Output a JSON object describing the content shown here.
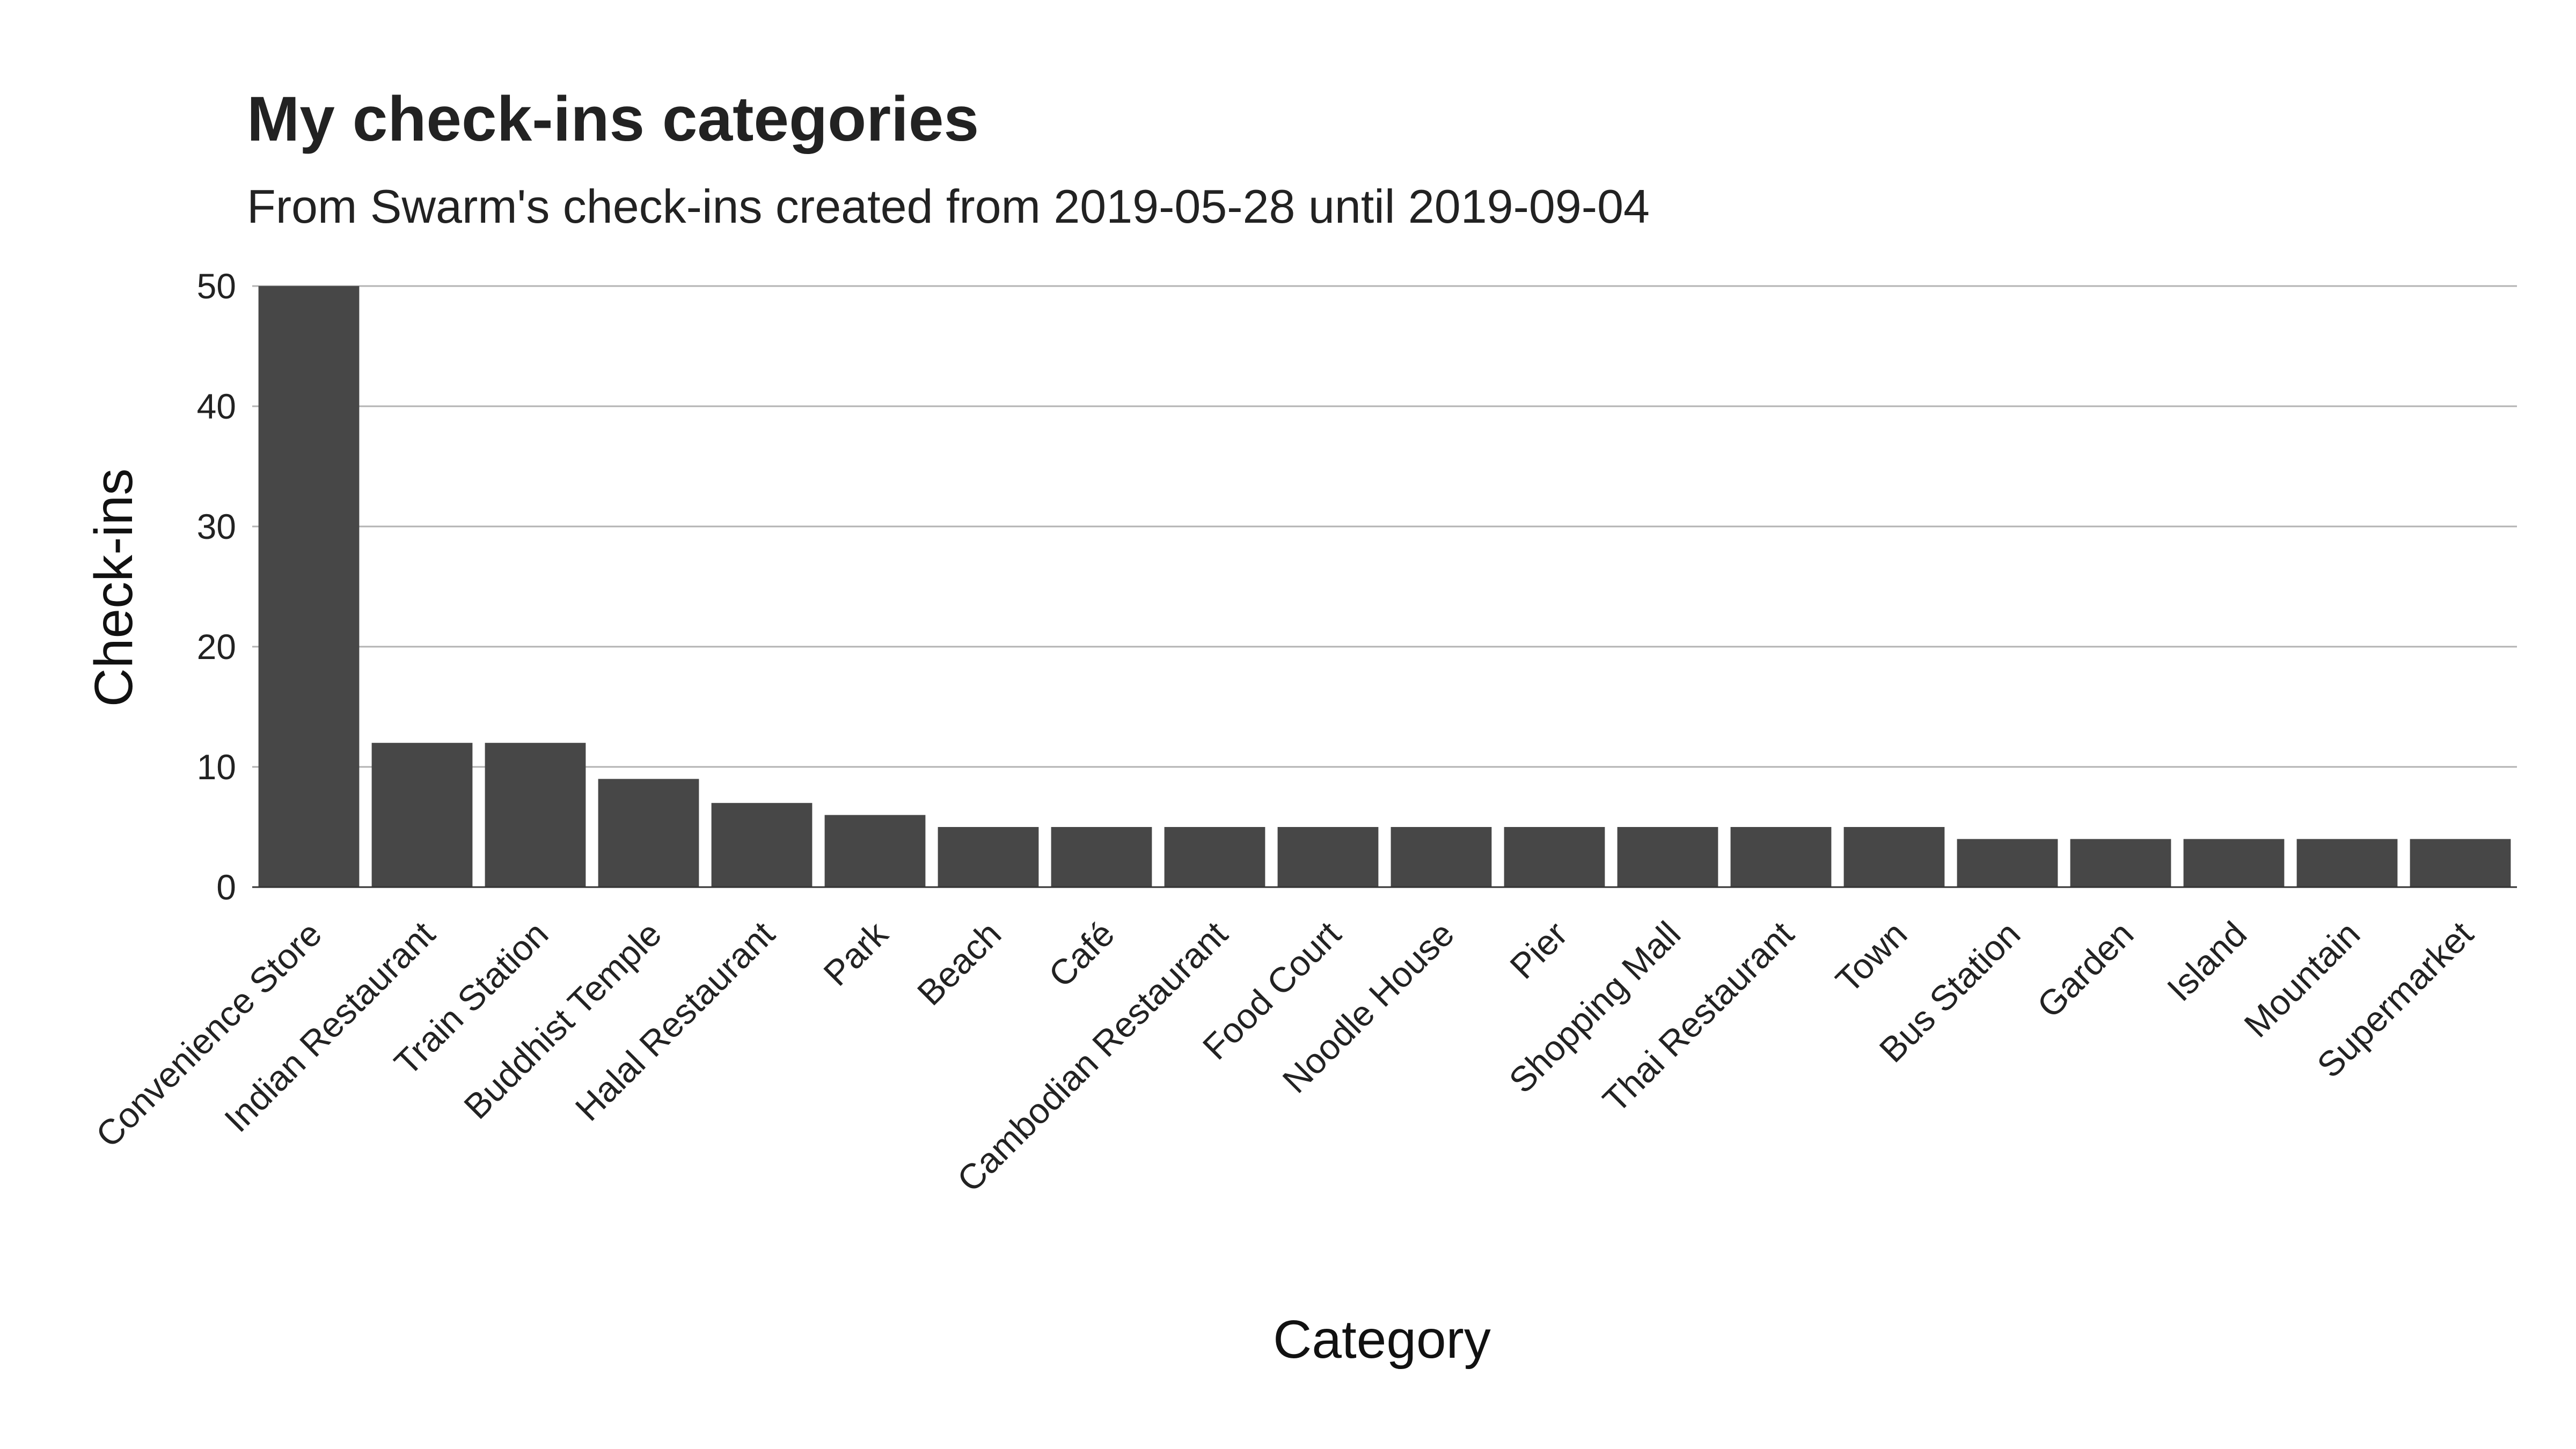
{
  "chart_data": {
    "type": "bar",
    "title": "My check-ins categories",
    "subtitle": "From Swarm's check-ins created from 2019-05-28 until 2019-09-04",
    "xlabel": "Category",
    "ylabel": "Check-ins",
    "categories": [
      "Convenience Store",
      "Indian Restaurant",
      "Train Station",
      "Buddhist Temple",
      "Halal Restaurant",
      "Park",
      "Beach",
      "Café",
      "Cambodian Restaurant",
      "Food Court",
      "Noodle House",
      "Pier",
      "Shopping Mall",
      "Thai Restaurant",
      "Town",
      "Bus Station",
      "Garden",
      "Island",
      "Mountain",
      "Supermarket"
    ],
    "values": [
      50,
      12,
      12,
      9,
      7,
      6,
      5,
      5,
      5,
      5,
      5,
      5,
      5,
      5,
      5,
      4,
      4,
      4,
      4,
      4
    ],
    "ylim": [
      0,
      50
    ],
    "yticks": [
      0,
      10,
      20,
      30,
      40,
      50
    ],
    "bar_color": "#474747",
    "grid": true,
    "grid_axis": "y",
    "legend": false
  }
}
